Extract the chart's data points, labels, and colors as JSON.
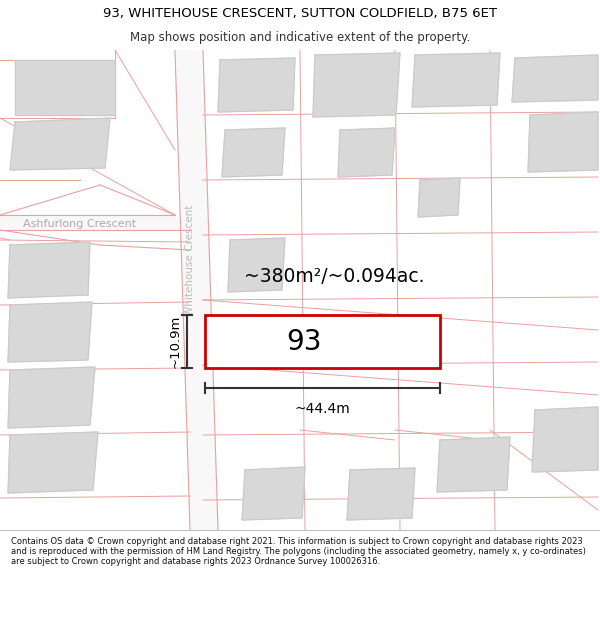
{
  "title_line1": "93, WHITEHOUSE CRESCENT, SUTTON COLDFIELD, B75 6ET",
  "title_line2": "Map shows position and indicative extent of the property.",
  "footer_text": "Contains OS data © Crown copyright and database right 2021. This information is subject to Crown copyright and database rights 2023 and is reproduced with the permission of HM Land Registry. The polygons (including the associated geometry, namely x, y co-ordinates) are subject to Crown copyright and database rights 2023 Ordnance Survey 100026316.",
  "background_color": "#ffffff",
  "map_bg_color": "#ffffff",
  "road_line_color": "#e8a0a0",
  "building_fill_color": "#d8d8d8",
  "building_edge_color": "#c8c8c8",
  "highlight_color": "#cc0000",
  "text_color": "#000000",
  "area_label": "~380m²/~0.094ac.",
  "property_label": "93",
  "dim_width": "~44.4m",
  "dim_height": "~10.9m",
  "street_label_1": "Ashfurlong Crescent",
  "street_label_2": "Whitehouse Crescent"
}
